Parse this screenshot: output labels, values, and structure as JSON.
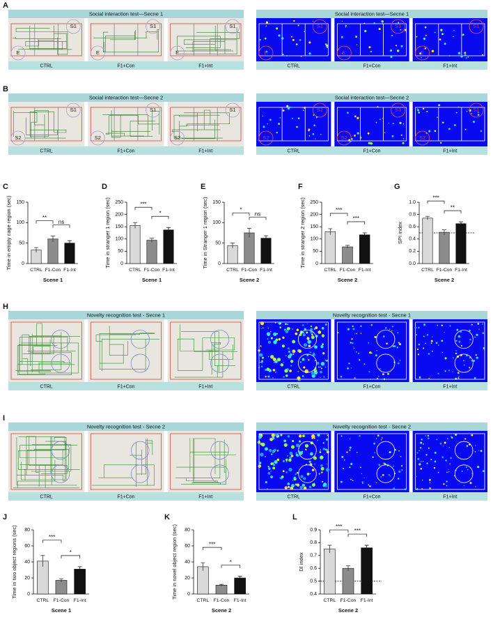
{
  "image_panels": [
    {
      "letter": "A",
      "groups": [
        {
          "kind": "track3",
          "title": "Social interaction test—Secne 1",
          "captions": [
            "CTRL",
            "F1+Con",
            "F1+Int"
          ],
          "images": [
            {
              "labels": [
                "S1",
                "E"
              ]
            },
            {
              "labels": [
                "S1",
                "E"
              ]
            },
            {
              "labels": [
                "S1",
                "E"
              ]
            }
          ]
        },
        {
          "kind": "heat3",
          "title": "Social interaction test—Secne 1",
          "captions": [
            "CTRL",
            "F1+Con",
            "F1+Int"
          ],
          "images": [
            {
              "labels": [
                "S1",
                "E"
              ]
            },
            {
              "labels": [
                "S1",
                "E"
              ]
            },
            {
              "labels": [
                "S1",
                "E"
              ]
            }
          ]
        }
      ]
    },
    {
      "letter": "B",
      "groups": [
        {
          "kind": "track3",
          "title": "Social interaction test—Secne 2",
          "captions": [
            "CTRL",
            "F1+Con",
            "F1+Int"
          ],
          "images": [
            {
              "labels": [
                "S1",
                "S2"
              ]
            },
            {
              "labels": [
                "S1",
                "S2"
              ]
            },
            {
              "labels": [
                "S1",
                "S2"
              ]
            }
          ]
        },
        {
          "kind": "heat3",
          "title": "Social interaction test—Secne 2",
          "captions": [
            "CTRL",
            "F1+Con",
            "F1+Int"
          ],
          "images": [
            {
              "labels": [
                "S1",
                "S2"
              ]
            },
            {
              "labels": [
                "S1",
                "S2"
              ]
            },
            {
              "labels": [
                "S1",
                "S2"
              ]
            }
          ]
        }
      ]
    },
    {
      "letter": "H",
      "groups": [
        {
          "kind": "field",
          "title": "Novelty recognition test - Secne 1",
          "captions": [
            "CTRL",
            "F1+Con",
            "F1+Int"
          ]
        },
        {
          "kind": "heatfield",
          "title": "Novelty recognition test - Secne 1",
          "captions": [
            "CTRL",
            "F1+Con",
            "F1+Int"
          ]
        }
      ]
    },
    {
      "letter": "I",
      "groups": [
        {
          "kind": "field",
          "title": "Novelty recognition test - Secne 2",
          "captions": [
            "CTRL",
            "F1+Con",
            "F1+Int"
          ]
        },
        {
          "kind": "heatfield",
          "title": "Novelty recognition test - Secne 2",
          "captions": [
            "CTRL",
            "F1+Con",
            "F1+Int"
          ]
        }
      ]
    }
  ],
  "chart_data": [
    {
      "type": "bar",
      "panel": "C",
      "ylabel": "Time in  empty cage region (sec)",
      "xlabel": "Scene 1",
      "categories": [
        "CTRL",
        "F1-Con",
        "F1-Int"
      ],
      "values": [
        33,
        60,
        50
      ],
      "errors": [
        6,
        7,
        6
      ],
      "colors": [
        "#d9d9d9",
        "#8c8c8c",
        "#111111"
      ],
      "ylim": [
        0,
        150
      ],
      "yticks": [
        0,
        50,
        100,
        150
      ],
      "significance": [
        {
          "between": [
            0,
            1
          ],
          "label": "**"
        },
        {
          "between": [
            1,
            2
          ],
          "label": "ns"
        }
      ]
    },
    {
      "type": "bar",
      "panel": "D",
      "ylabel": "Time in  stranger 1 region (sec)",
      "xlabel": "Scene 1",
      "categories": [
        "CTRL",
        "F1-Con",
        "F1-Int"
      ],
      "values": [
        155,
        95,
        137
      ],
      "errors": [
        12,
        8,
        10
      ],
      "colors": [
        "#d9d9d9",
        "#8c8c8c",
        "#111111"
      ],
      "ylim": [
        0,
        250
      ],
      "yticks": [
        0,
        50,
        100,
        150,
        200,
        250
      ],
      "significance": [
        {
          "between": [
            0,
            1
          ],
          "label": "***"
        },
        {
          "between": [
            1,
            2
          ],
          "label": "*"
        }
      ]
    },
    {
      "type": "bar",
      "panel": "E",
      "ylabel": "Time in  Stranger 1 region (sec)",
      "xlabel": "Scene 2",
      "categories": [
        "CTRL",
        "F1-Con",
        "F1-Int"
      ],
      "values": [
        44,
        75,
        62
      ],
      "errors": [
        6,
        11,
        6
      ],
      "colors": [
        "#d9d9d9",
        "#8c8c8c",
        "#111111"
      ],
      "ylim": [
        0,
        150
      ],
      "yticks": [
        0,
        50,
        100,
        150
      ],
      "significance": [
        {
          "between": [
            0,
            1
          ],
          "label": "*"
        },
        {
          "between": [
            1,
            2
          ],
          "label": "ns"
        }
      ]
    },
    {
      "type": "bar",
      "panel": "F",
      "ylabel": "Time in  stranger 2 region (sec)",
      "xlabel": "Scene 2",
      "categories": [
        "CTRL",
        "F1-Con",
        "F1-Int"
      ],
      "values": [
        130,
        68,
        117
      ],
      "errors": [
        12,
        6,
        8
      ],
      "colors": [
        "#d9d9d9",
        "#8c8c8c",
        "#111111"
      ],
      "ylim": [
        0,
        250
      ],
      "yticks": [
        0,
        50,
        100,
        150,
        200,
        250
      ],
      "significance": [
        {
          "between": [
            0,
            1
          ],
          "label": "***"
        },
        {
          "between": [
            1,
            2
          ],
          "label": "***"
        }
      ]
    },
    {
      "type": "bar",
      "panel": "G",
      "ylabel": "SPI  index",
      "xlabel": "Scene 2",
      "categories": [
        "CTRL",
        "F1-Con",
        "F1-Int"
      ],
      "values": [
        0.74,
        0.51,
        0.65
      ],
      "errors": [
        0.03,
        0.04,
        0.03
      ],
      "colors": [
        "#d9d9d9",
        "#8c8c8c",
        "#111111"
      ],
      "ylim": [
        0,
        1
      ],
      "yticks": [
        {
          "value": 0,
          "label": "0.0"
        },
        0.2,
        0.4,
        0.6,
        0.8,
        {
          "value": 1,
          "label": "1.0"
        }
      ],
      "reference_line": 0.5,
      "significance": [
        {
          "between": [
            0,
            1
          ],
          "label": "***"
        },
        {
          "between": [
            1,
            2
          ],
          "label": "**"
        }
      ]
    },
    {
      "type": "bar",
      "panel": "J",
      "ylabel": "Time in two object regions (sec)",
      "xlabel": "Scene 1",
      "categories": [
        "CTRL",
        "F1-Con",
        "F1-Int"
      ],
      "values": [
        41,
        17,
        31
      ],
      "errors": [
        7,
        2,
        3
      ],
      "colors": [
        "#d9d9d9",
        "#8c8c8c",
        "#111111"
      ],
      "ylim": [
        0,
        80
      ],
      "yticks": [
        0,
        20,
        40,
        60,
        80
      ],
      "significance": [
        {
          "between": [
            0,
            1
          ],
          "label": "***"
        },
        {
          "between": [
            1,
            2
          ],
          "label": "*"
        }
      ]
    },
    {
      "type": "bar",
      "panel": "K",
      "ylabel": "Time  in  novel object region (sec)",
      "xlabel": "Scene 2",
      "categories": [
        "CTRL",
        "F1-Con",
        "F1-Int"
      ],
      "values": [
        34,
        11,
        20
      ],
      "errors": [
        5,
        1,
        2
      ],
      "colors": [
        "#d9d9d9",
        "#8c8c8c",
        "#111111"
      ],
      "ylim": [
        0,
        80
      ],
      "yticks": [
        0,
        20,
        40,
        60,
        80
      ],
      "significance": [
        {
          "between": [
            0,
            1
          ],
          "label": "***"
        },
        {
          "between": [
            1,
            2
          ],
          "label": "*"
        }
      ]
    },
    {
      "type": "bar",
      "panel": "L",
      "ylabel": "DI  index",
      "xlabel": "Scene 2",
      "categories": [
        "CTRL",
        "F1-Con",
        "F1-Int"
      ],
      "values": [
        0.75,
        0.6,
        0.76
      ],
      "errors": [
        0.03,
        0.02,
        0.02
      ],
      "colors": [
        "#d9d9d9",
        "#8c8c8c",
        "#111111"
      ],
      "ylim": [
        0.4,
        0.9
      ],
      "yticks": [
        0.4,
        0.5,
        0.6,
        0.7,
        0.8,
        0.9
      ],
      "reference_line": 0.5,
      "significance": [
        {
          "between": [
            0,
            1
          ],
          "label": "***"
        },
        {
          "between": [
            1,
            2
          ],
          "label": "***"
        }
      ]
    }
  ]
}
